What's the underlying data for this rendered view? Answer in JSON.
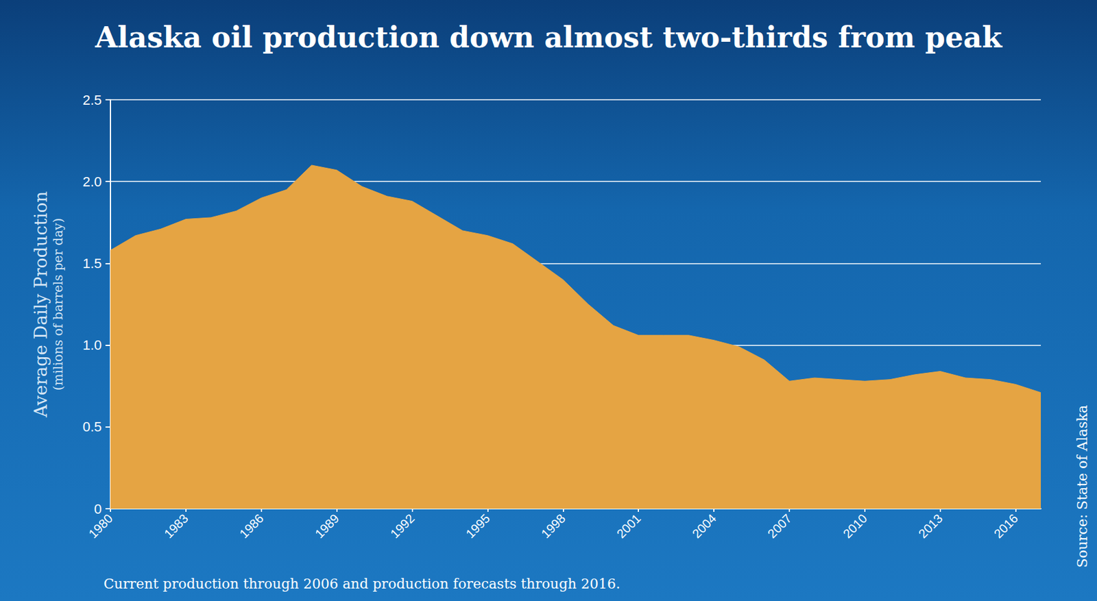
{
  "chart_data": {
    "type": "area",
    "title": "Alaska oil production down almost two-thirds from peak",
    "y_label": "Average Daily Production",
    "y_label_sub": "(milions of barrels per day)",
    "source": "Source: State of Alaska",
    "footnote": "Current production through 2006 and production forecasts through 2016.",
    "categories": [
      "1980",
      null,
      null,
      "1983",
      null,
      null,
      "1986",
      null,
      null,
      "1989",
      null,
      null,
      "1992",
      null,
      null,
      "1995",
      null,
      null,
      "1998",
      null,
      null,
      "2001",
      null,
      null,
      "2004",
      null,
      null,
      "2007",
      null,
      null,
      "2010",
      null,
      null,
      "2013",
      null,
      null,
      "2016",
      null
    ],
    "values": [
      1.58,
      1.67,
      1.71,
      1.77,
      1.78,
      1.82,
      1.9,
      1.95,
      2.1,
      2.07,
      1.97,
      1.91,
      1.88,
      1.79,
      1.7,
      1.67,
      1.62,
      1.51,
      1.4,
      1.25,
      1.12,
      1.06,
      1.06,
      1.06,
      1.03,
      0.99,
      0.91,
      0.78,
      0.8,
      0.79,
      0.78,
      0.79,
      0.82,
      0.84,
      0.8,
      0.79,
      0.76,
      0.71
    ],
    "color": "#e5a443",
    "ylim": [
      0,
      2.5
    ],
    "yticks": [
      0,
      0.5,
      {
        "value": 1,
        "label": "1.0"
      },
      1.5,
      {
        "value": 2,
        "label": "2.0"
      },
      2.5
    ],
    "grid": true
  }
}
